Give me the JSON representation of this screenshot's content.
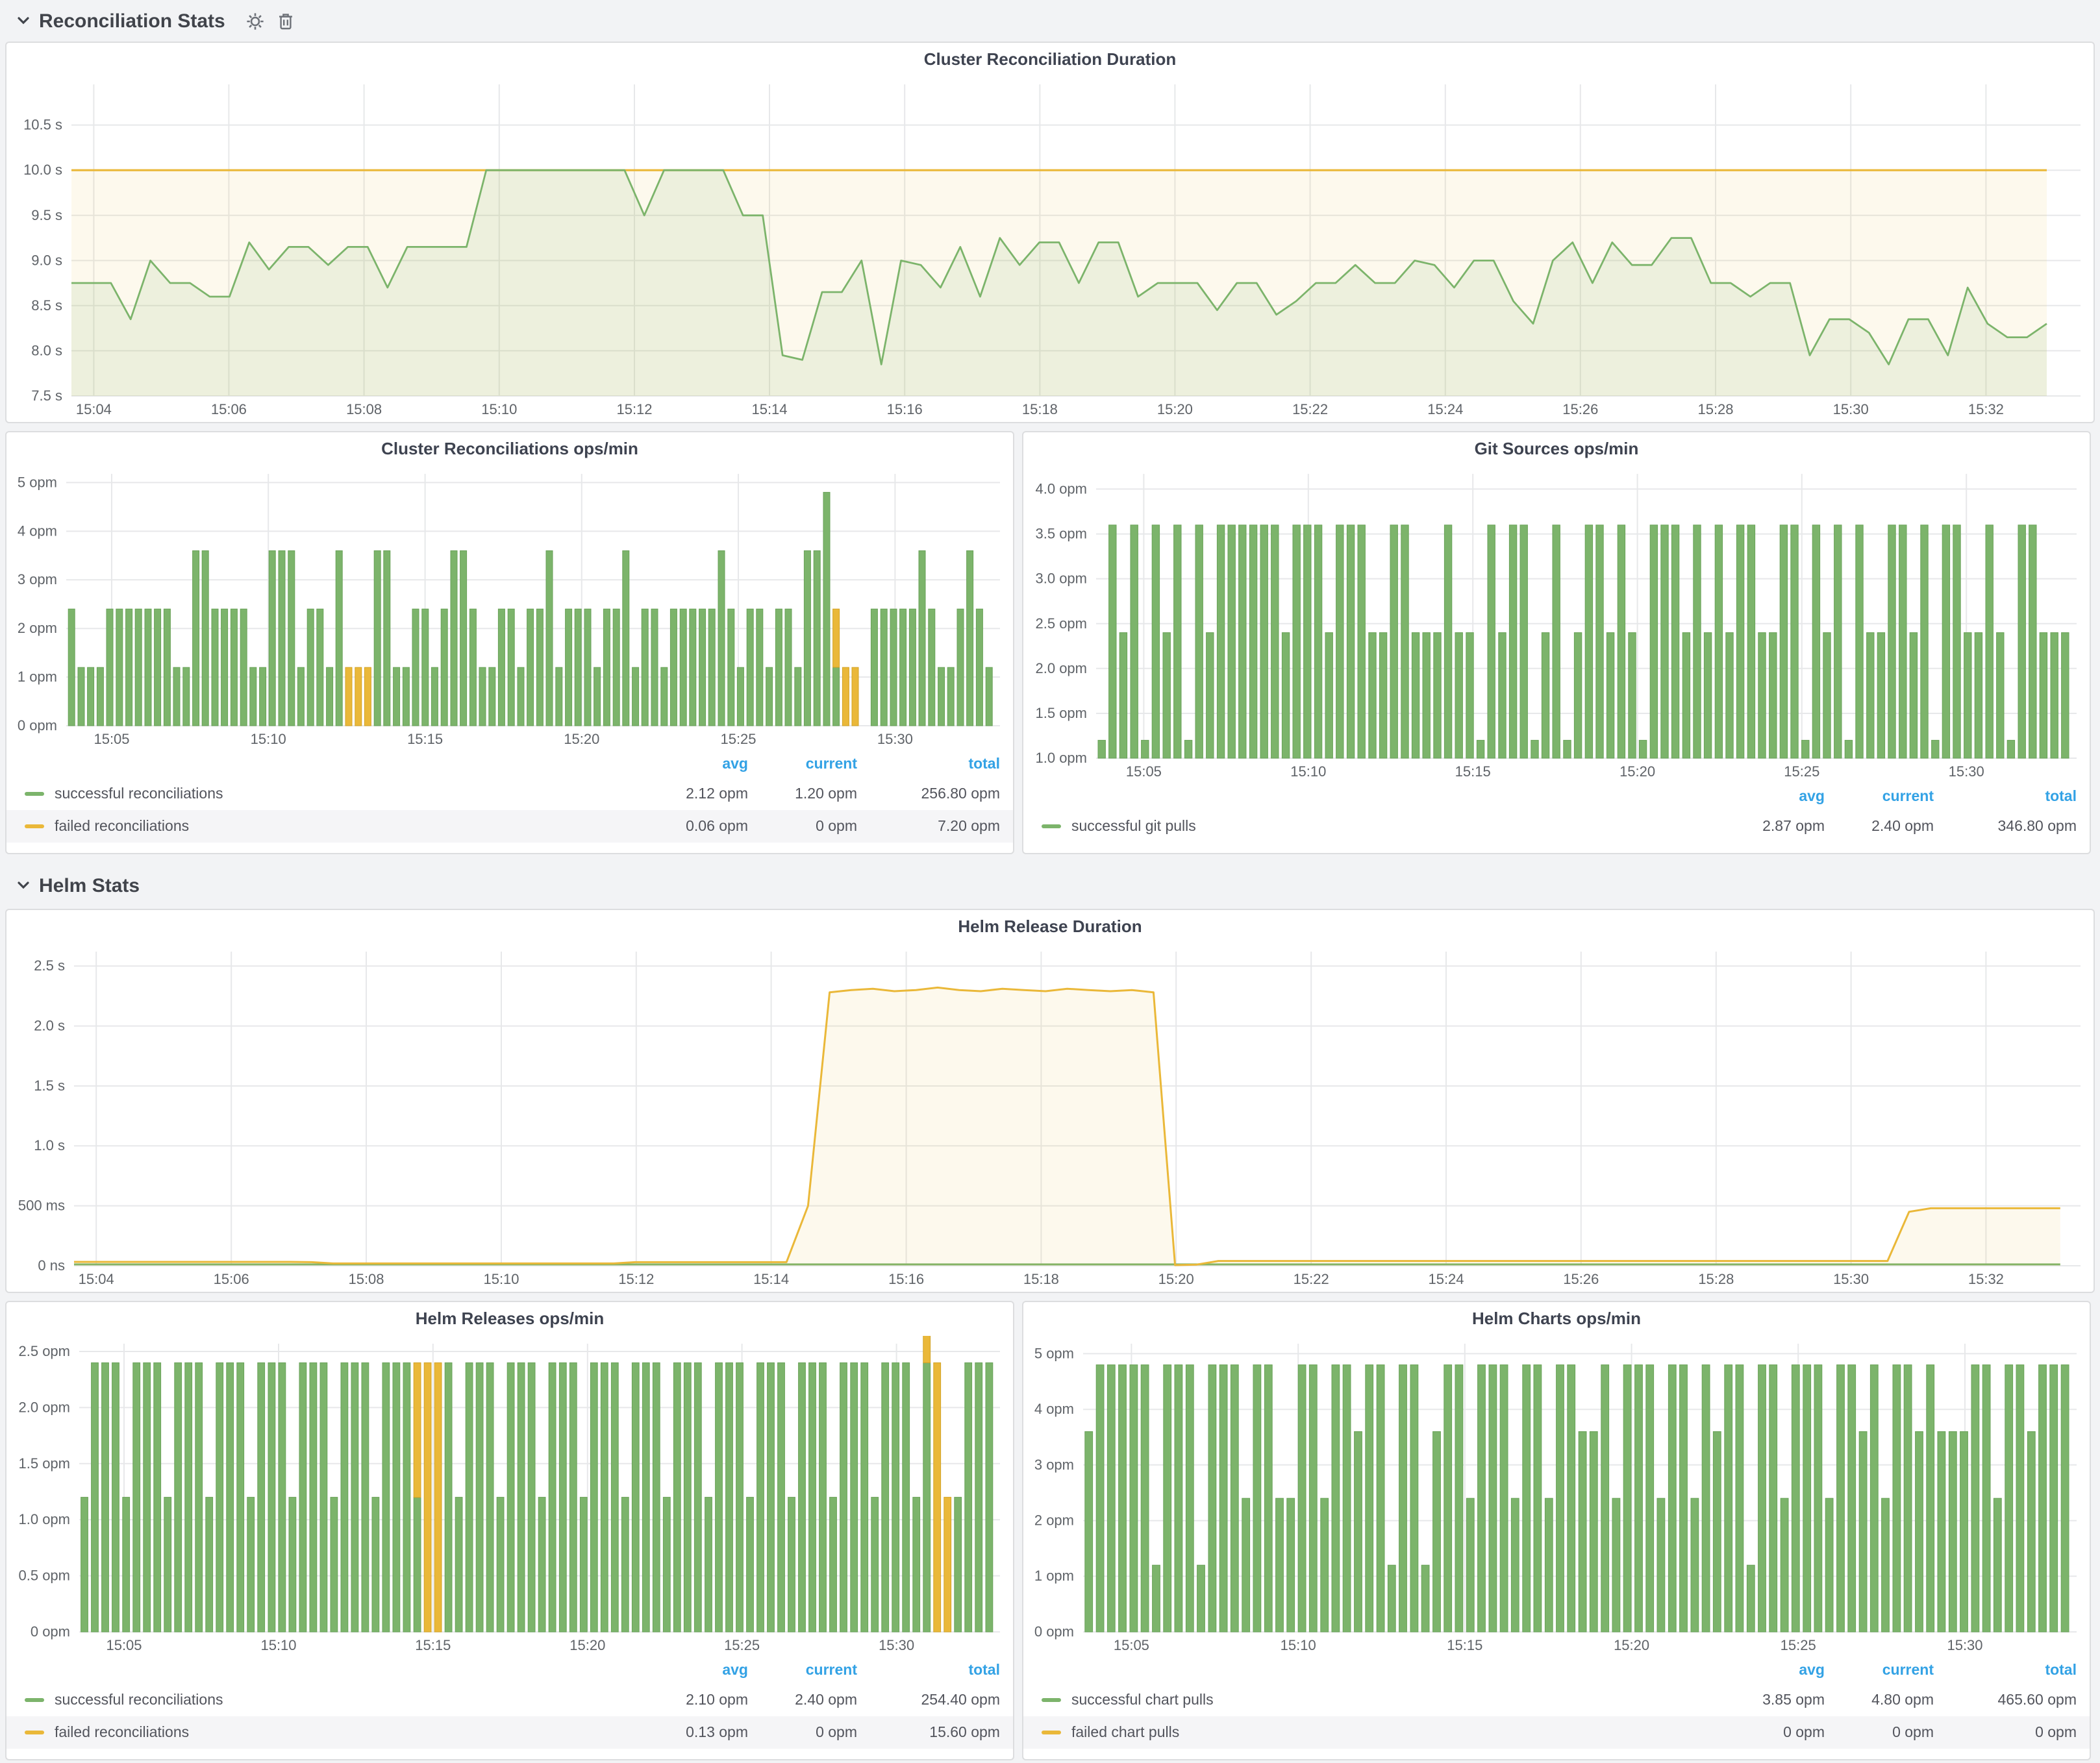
{
  "colors": {
    "green": "#7cb46b",
    "green_dark": "#69a258",
    "yellow": "#eab839",
    "yellow_dark": "#d3a326",
    "blue": "#33a2e5"
  },
  "sections": [
    {
      "title": "Reconciliation Stats"
    },
    {
      "title": "Helm Stats"
    }
  ],
  "charts": {
    "c1": {
      "title": "Cluster Reconciliation Duration",
      "type": "line",
      "ml": 50,
      "xmin": 3.67,
      "xmax": 33.4,
      "ymin": 7.5,
      "ymax": 10.95,
      "yticks": [
        {
          "v": 7.5,
          "l": "7.5 s"
        },
        {
          "v": 8,
          "l": "8.0 s"
        },
        {
          "v": 8.5,
          "l": "8.5 s"
        },
        {
          "v": 9,
          "l": "9.0 s"
        },
        {
          "v": 9.5,
          "l": "9.5 s"
        },
        {
          "v": 10,
          "l": "10.0 s"
        },
        {
          "v": 10.5,
          "l": "10.5 s"
        }
      ],
      "xticks": [
        {
          "v": 4,
          "l": "15:04"
        },
        {
          "v": 6,
          "l": "15:06"
        },
        {
          "v": 8,
          "l": "15:08"
        },
        {
          "v": 10,
          "l": "15:10"
        },
        {
          "v": 12,
          "l": "15:12"
        },
        {
          "v": 14,
          "l": "15:14"
        },
        {
          "v": 16,
          "l": "15:16"
        },
        {
          "v": 18,
          "l": "15:18"
        },
        {
          "v": 20,
          "l": "15:20"
        },
        {
          "v": 22,
          "l": "15:22"
        },
        {
          "v": 24,
          "l": "15:24"
        },
        {
          "v": 26,
          "l": "15:26"
        },
        {
          "v": 28,
          "l": "15:28"
        },
        {
          "v": 30,
          "l": "15:30"
        },
        {
          "v": 32,
          "l": "15:32"
        }
      ],
      "series": [
        {
          "color": "yellow",
          "fill": 0.09,
          "width": 1.6,
          "t0": 3.67,
          "t1": 32.9,
          "values": [
            10,
            10
          ]
        },
        {
          "color": "green",
          "fill": 0.12,
          "width": 1.4,
          "t0": 3.67,
          "t1": 32.9,
          "values": [
            8.75,
            8.75,
            8.75,
            8.35,
            9.0,
            8.75,
            8.75,
            8.6,
            8.6,
            9.2,
            8.9,
            9.15,
            9.15,
            8.95,
            9.15,
            9.15,
            8.7,
            9.15,
            9.15,
            9.15,
            9.15,
            10,
            10,
            10,
            10,
            10,
            10,
            10,
            10,
            9.5,
            10,
            10,
            10,
            10,
            9.5,
            9.5,
            7.95,
            7.9,
            8.65,
            8.65,
            9.0,
            7.85,
            9.0,
            8.95,
            8.7,
            9.15,
            8.6,
            9.25,
            8.95,
            9.2,
            9.2,
            8.75,
            9.2,
            9.2,
            8.6,
            8.75,
            8.75,
            8.75,
            8.45,
            8.75,
            8.75,
            8.4,
            8.55,
            8.75,
            8.75,
            8.95,
            8.75,
            8.75,
            9.0,
            8.95,
            8.7,
            9.0,
            9.0,
            8.55,
            8.3,
            9.0,
            9.2,
            8.75,
            9.2,
            8.95,
            8.95,
            9.25,
            9.25,
            8.75,
            8.75,
            8.6,
            8.75,
            8.75,
            7.95,
            8.35,
            8.35,
            8.2,
            7.85,
            8.35,
            8.35,
            7.95,
            8.7,
            8.3,
            8.15,
            8.15,
            8.3
          ]
        }
      ]
    },
    "c2": {
      "title": "Cluster Reconciliations ops/min",
      "type": "bars",
      "ml": 46,
      "xmin": 3.55,
      "xmax": 33.35,
      "ymin": 0,
      "ymax": 5.18,
      "yticks": [
        {
          "v": 0,
          "l": "0 opm"
        },
        {
          "v": 1,
          "l": "1 opm"
        },
        {
          "v": 2,
          "l": "2 opm"
        },
        {
          "v": 3,
          "l": "3 opm"
        },
        {
          "v": 4,
          "l": "4 opm"
        },
        {
          "v": 5,
          "l": "5 opm"
        }
      ],
      "xticks": [
        {
          "v": 5,
          "l": "15:05"
        },
        {
          "v": 10,
          "l": "15:10"
        },
        {
          "v": 15,
          "l": "15:15"
        },
        {
          "v": 20,
          "l": "15:20"
        },
        {
          "v": 25,
          "l": "15:25"
        },
        {
          "v": 30,
          "l": "15:30"
        }
      ],
      "bars": {
        "t0": 3.72,
        "t1": 33.0,
        "success": [
          2.4,
          1.2,
          1.2,
          1.2,
          2.4,
          2.4,
          2.4,
          2.4,
          2.4,
          2.4,
          2.4,
          1.2,
          1.2,
          3.6,
          3.6,
          2.4,
          2.4,
          2.4,
          2.4,
          1.2,
          1.2,
          3.6,
          3.6,
          3.6,
          1.2,
          2.4,
          2.4,
          1.2,
          3.6,
          0,
          0,
          0,
          3.6,
          3.6,
          1.2,
          1.2,
          2.4,
          2.4,
          1.2,
          2.4,
          3.6,
          3.6,
          2.4,
          1.2,
          1.2,
          2.4,
          2.4,
          1.2,
          2.4,
          2.4,
          3.6,
          1.2,
          2.4,
          2.4,
          2.4,
          1.2,
          2.4,
          2.4,
          3.6,
          1.2,
          2.4,
          2.4,
          1.2,
          2.4,
          2.4,
          2.4,
          2.4,
          2.4,
          3.6,
          2.4,
          1.2,
          2.4,
          2.4,
          1.2,
          2.4,
          2.4,
          1.2,
          3.6,
          3.6,
          4.8,
          1.2,
          0,
          0,
          0,
          2.4,
          2.4,
          2.4,
          2.4,
          2.4,
          3.6,
          2.4,
          1.2,
          1.2,
          2.4,
          3.6,
          2.4,
          1.2
        ],
        "failed": {
          "29": 1.2,
          "30": 1.2,
          "31": 1.2,
          "80": 1.2,
          "81": 1.2,
          "82": 1.2
        }
      },
      "legend": {
        "headers": [
          "avg",
          "current",
          "total"
        ],
        "rows": [
          {
            "name": "successful reconciliations",
            "avg": "2.12 opm",
            "current": "1.20 opm",
            "total": "256.80 opm"
          },
          {
            "name": "failed reconciliations",
            "avg": "0.06 opm",
            "current": "0 opm",
            "total": "7.20 opm"
          }
        ]
      }
    },
    "c3": {
      "title": "Git Sources ops/min",
      "type": "bars",
      "ml": 56,
      "xmin": 3.55,
      "xmax": 33.35,
      "ymin": 1.0,
      "ymax": 4.17,
      "yticks": [
        {
          "v": 1,
          "l": "1.0 opm"
        },
        {
          "v": 1.5,
          "l": "1.5 opm"
        },
        {
          "v": 2,
          "l": "2.0 opm"
        },
        {
          "v": 2.5,
          "l": "2.5 opm"
        },
        {
          "v": 3,
          "l": "3.0 opm"
        },
        {
          "v": 3.5,
          "l": "3.5 opm"
        },
        {
          "v": 4,
          "l": "4.0 opm"
        }
      ],
      "xticks": [
        {
          "v": 5,
          "l": "15:05"
        },
        {
          "v": 10,
          "l": "15:10"
        },
        {
          "v": 15,
          "l": "15:15"
        },
        {
          "v": 20,
          "l": "15:20"
        },
        {
          "v": 25,
          "l": "15:25"
        },
        {
          "v": 30,
          "l": "15:30"
        }
      ],
      "bars": {
        "t0": 3.72,
        "t1": 33.0,
        "success": [
          1.2,
          3.6,
          2.4,
          3.6,
          1.2,
          3.6,
          2.4,
          3.6,
          1.2,
          3.6,
          2.4,
          3.6,
          3.6,
          3.6,
          3.6,
          3.6,
          3.6,
          2.4,
          3.6,
          3.6,
          3.6,
          2.4,
          3.6,
          3.6,
          3.6,
          2.4,
          2.4,
          3.6,
          3.6,
          2.4,
          2.4,
          2.4,
          3.6,
          2.4,
          2.4,
          1.2,
          3.6,
          2.4,
          3.6,
          3.6,
          1.2,
          2.4,
          3.6,
          1.2,
          2.4,
          3.6,
          3.6,
          2.4,
          3.6,
          2.4,
          1.2,
          3.6,
          3.6,
          3.6,
          2.4,
          3.6,
          2.4,
          3.6,
          2.4,
          3.6,
          3.6,
          2.4,
          2.4,
          3.6,
          3.6,
          1.2,
          3.6,
          2.4,
          3.6,
          1.2,
          3.6,
          2.4,
          2.4,
          3.6,
          3.6,
          2.4,
          3.6,
          1.2,
          3.6,
          3.6,
          2.4,
          2.4,
          3.6,
          2.4,
          1.2,
          3.6,
          3.6,
          2.4,
          2.4,
          2.4
        ]
      },
      "legend": {
        "headers": [
          "avg",
          "current",
          "total"
        ],
        "rows": [
          {
            "name": "successful git pulls",
            "avg": "2.87 opm",
            "current": "2.40 opm",
            "total": "346.80 opm"
          }
        ]
      }
    },
    "c4": {
      "title": "Helm Release Duration",
      "type": "line",
      "ml": 52,
      "xmin": 3.67,
      "xmax": 33.4,
      "ymin": 0,
      "ymax": 2.62,
      "yticks": [
        {
          "v": 0,
          "l": "0 ns"
        },
        {
          "v": 0.5,
          "l": "500 ms"
        },
        {
          "v": 1,
          "l": "1.0 s"
        },
        {
          "v": 1.5,
          "l": "1.5 s"
        },
        {
          "v": 2,
          "l": "2.0 s"
        },
        {
          "v": 2.5,
          "l": "2.5 s"
        }
      ],
      "xticks": [
        {
          "v": 4,
          "l": "15:04"
        },
        {
          "v": 6,
          "l": "15:06"
        },
        {
          "v": 8,
          "l": "15:08"
        },
        {
          "v": 10,
          "l": "15:10"
        },
        {
          "v": 12,
          "l": "15:12"
        },
        {
          "v": 14,
          "l": "15:14"
        },
        {
          "v": 16,
          "l": "15:16"
        },
        {
          "v": 18,
          "l": "15:18"
        },
        {
          "v": 20,
          "l": "15:20"
        },
        {
          "v": 22,
          "l": "15:22"
        },
        {
          "v": 24,
          "l": "15:24"
        },
        {
          "v": 26,
          "l": "15:26"
        },
        {
          "v": 28,
          "l": "15:28"
        },
        {
          "v": 30,
          "l": "15:30"
        },
        {
          "v": 32,
          "l": "15:32"
        }
      ],
      "series": [
        {
          "color": "green",
          "fill": 0.1,
          "width": 1.4,
          "t0": 3.67,
          "t1": 33.1,
          "values": [
            0.012,
            0.012
          ]
        },
        {
          "color": "yellow",
          "fill": 0.09,
          "width": 1.5,
          "t0": 3.67,
          "t1": 33.1,
          "values": [
            0.032,
            0.032,
            0.032,
            0.032,
            0.032,
            0.032,
            0.032,
            0.032,
            0.032,
            0.032,
            0.032,
            0.03,
            0.02,
            0.02,
            0.02,
            0.02,
            0.02,
            0.02,
            0.02,
            0.02,
            0.02,
            0.02,
            0.02,
            0.02,
            0.02,
            0.02,
            0.03,
            0.03,
            0.03,
            0.03,
            0.03,
            0.03,
            0.03,
            0.03,
            0.5,
            2.28,
            2.3,
            2.31,
            2.29,
            2.3,
            2.32,
            2.3,
            2.29,
            2.31,
            2.3,
            2.29,
            2.31,
            2.3,
            2.29,
            2.3,
            2.28,
            0.005,
            0.01,
            0.04,
            0.04,
            0.04,
            0.04,
            0.04,
            0.04,
            0.04,
            0.04,
            0.04,
            0.04,
            0.04,
            0.04,
            0.04,
            0.04,
            0.04,
            0.04,
            0.04,
            0.04,
            0.04,
            0.04,
            0.04,
            0.04,
            0.04,
            0.04,
            0.04,
            0.04,
            0.04,
            0.04,
            0.04,
            0.04,
            0.04,
            0.04,
            0.45,
            0.48,
            0.48,
            0.48,
            0.48,
            0.48,
            0.48,
            0.48
          ]
        }
      ]
    },
    "c5": {
      "title": "Helm Releases ops/min",
      "type": "bars",
      "ml": 56,
      "xmin": 3.55,
      "xmax": 33.35,
      "ymin": 0,
      "ymax": 2.57,
      "yticks": [
        {
          "v": 0,
          "l": "0 opm"
        },
        {
          "v": 0.5,
          "l": "0.5 opm"
        },
        {
          "v": 1,
          "l": "1.0 opm"
        },
        {
          "v": 1.5,
          "l": "1.5 opm"
        },
        {
          "v": 2,
          "l": "2.0 opm"
        },
        {
          "v": 2.5,
          "l": "2.5 opm"
        }
      ],
      "xticks": [
        {
          "v": 5,
          "l": "15:05"
        },
        {
          "v": 10,
          "l": "15:10"
        },
        {
          "v": 15,
          "l": "15:15"
        },
        {
          "v": 20,
          "l": "15:20"
        },
        {
          "v": 25,
          "l": "15:25"
        },
        {
          "v": 30,
          "l": "15:30"
        }
      ],
      "bars": {
        "t0": 3.72,
        "t1": 33.0,
        "success": [
          1.2,
          2.4,
          2.4,
          2.4,
          1.2,
          2.4,
          2.4,
          2.4,
          1.2,
          2.4,
          2.4,
          2.4,
          1.2,
          2.4,
          2.4,
          2.4,
          1.2,
          2.4,
          2.4,
          2.4,
          1.2,
          2.4,
          2.4,
          2.4,
          1.2,
          2.4,
          2.4,
          2.4,
          1.2,
          2.4,
          2.4,
          2.4,
          1.2,
          0,
          0,
          2.4,
          1.2,
          2.4,
          2.4,
          2.4,
          1.2,
          2.4,
          2.4,
          2.4,
          1.2,
          2.4,
          2.4,
          2.4,
          1.2,
          2.4,
          2.4,
          2.4,
          1.2,
          2.4,
          2.4,
          2.4,
          1.2,
          2.4,
          2.4,
          2.4,
          1.2,
          2.4,
          2.4,
          2.4,
          1.2,
          2.4,
          2.4,
          2.4,
          1.2,
          2.4,
          2.4,
          2.4,
          1.2,
          2.4,
          2.4,
          2.4,
          1.2,
          2.4,
          2.4,
          2.4,
          1.2,
          2.4,
          0,
          0,
          1.2,
          2.4,
          2.4,
          2.4
        ],
        "failed": {
          "32": 1.2,
          "33": 2.4,
          "34": 2.4,
          "81": 2.4,
          "82": 2.4,
          "83": 1.2
        }
      },
      "legend": {
        "headers": [
          "avg",
          "current",
          "total"
        ],
        "rows": [
          {
            "name": "successful reconciliations",
            "avg": "2.10 opm",
            "current": "2.40 opm",
            "total": "254.40 opm"
          },
          {
            "name": "failed reconciliations",
            "avg": "0.13 opm",
            "current": "0 opm",
            "total": "15.60 opm"
          }
        ]
      }
    },
    "c6": {
      "title": "Helm Charts ops/min",
      "type": "bars",
      "ml": 46,
      "xmin": 3.55,
      "xmax": 33.35,
      "ymin": 0,
      "ymax": 5.18,
      "yticks": [
        {
          "v": 0,
          "l": "0 opm"
        },
        {
          "v": 1,
          "l": "1 opm"
        },
        {
          "v": 2,
          "l": "2 opm"
        },
        {
          "v": 3,
          "l": "3 opm"
        },
        {
          "v": 4,
          "l": "4 opm"
        },
        {
          "v": 5,
          "l": "5 opm"
        }
      ],
      "xticks": [
        {
          "v": 5,
          "l": "15:05"
        },
        {
          "v": 10,
          "l": "15:10"
        },
        {
          "v": 15,
          "l": "15:15"
        },
        {
          "v": 20,
          "l": "15:20"
        },
        {
          "v": 25,
          "l": "15:25"
        },
        {
          "v": 30,
          "l": "15:30"
        }
      ],
      "bars": {
        "t0": 3.72,
        "t1": 33.0,
        "success": [
          3.6,
          4.8,
          4.8,
          4.8,
          4.8,
          4.8,
          1.2,
          4.8,
          4.8,
          4.8,
          1.2,
          4.8,
          4.8,
          4.8,
          2.4,
          4.8,
          4.8,
          2.4,
          2.4,
          4.8,
          4.8,
          2.4,
          4.8,
          4.8,
          3.6,
          4.8,
          4.8,
          1.2,
          4.8,
          4.8,
          1.2,
          3.6,
          4.8,
          4.8,
          2.4,
          4.8,
          4.8,
          4.8,
          2.4,
          4.8,
          4.8,
          2.4,
          4.8,
          4.8,
          3.6,
          3.6,
          4.8,
          2.4,
          4.8,
          4.8,
          4.8,
          2.4,
          4.8,
          4.8,
          2.4,
          4.8,
          3.6,
          4.8,
          4.8,
          1.2,
          4.8,
          4.8,
          2.4,
          4.8,
          4.8,
          4.8,
          2.4,
          4.8,
          4.8,
          3.6,
          4.8,
          2.4,
          4.8,
          4.8,
          3.6,
          4.8,
          3.6,
          3.6,
          3.6,
          4.8,
          4.8,
          2.4,
          4.8,
          4.8,
          3.6,
          4.8,
          4.8,
          4.8
        ]
      },
      "legend": {
        "headers": [
          "avg",
          "current",
          "total"
        ],
        "rows": [
          {
            "name": "successful chart pulls",
            "avg": "3.85 opm",
            "current": "4.80 opm",
            "total": "465.60 opm"
          },
          {
            "name": "failed chart pulls",
            "avg": "0 opm",
            "current": "0 opm",
            "total": "0 opm"
          }
        ]
      }
    }
  }
}
